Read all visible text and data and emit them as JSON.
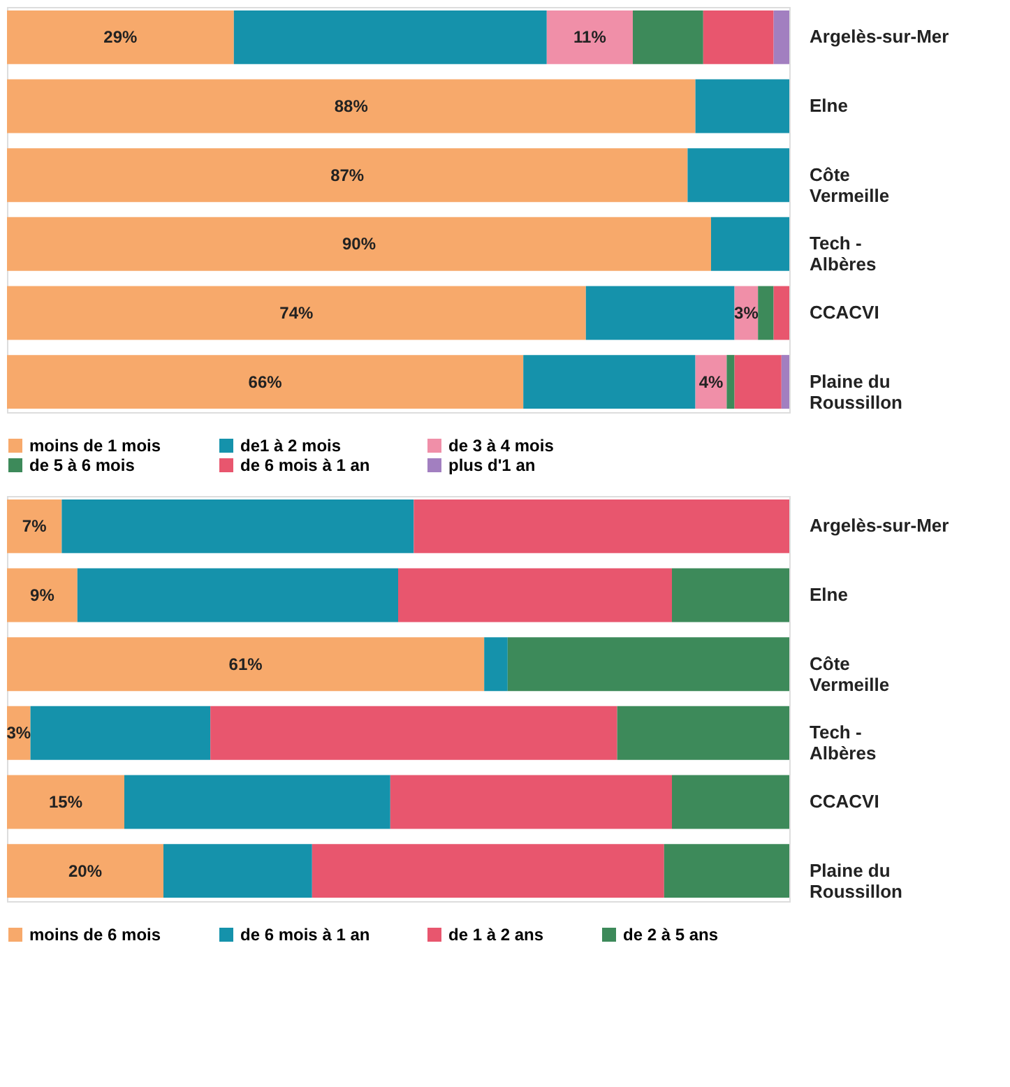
{
  "chart_data": [
    {
      "type": "bar",
      "orientation": "horizontal",
      "stacked": true,
      "legend": "bottom",
      "categories": [
        "Argelès-sur-Mer",
        "Elne",
        "Côte Vermeille",
        "Tech - Albères",
        "CCACVI",
        "Plaine du Roussillon"
      ],
      "series": [
        {
          "name": "moins de 1 mois",
          "color": "#f7a96b",
          "values": [
            29,
            88,
            87,
            90,
            74,
            66
          ],
          "value_labels": [
            "29%",
            "88%",
            "87%",
            "90%",
            "74%",
            "66%"
          ]
        },
        {
          "name": "de1 à 2 mois",
          "color": "#1592ab",
          "values": [
            40,
            12,
            13,
            10,
            19,
            22
          ],
          "value_labels": [
            null,
            null,
            null,
            null,
            null,
            null
          ]
        },
        {
          "name": "de 3 à 4 mois",
          "color": "#f08fa8",
          "values": [
            11,
            0,
            0,
            0,
            3,
            4
          ],
          "value_labels": [
            "11%",
            null,
            null,
            null,
            "3%",
            "4%"
          ]
        },
        {
          "name": "de 5 à 6 mois",
          "color": "#3d8a5a",
          "values": [
            9,
            0,
            0,
            0,
            2,
            1
          ],
          "value_labels": [
            null,
            null,
            null,
            null,
            null,
            null
          ]
        },
        {
          "name": "de 6 mois à 1 an",
          "color": "#e8566e",
          "values": [
            9,
            0,
            0,
            0,
            2,
            6
          ],
          "value_labels": [
            null,
            null,
            null,
            null,
            null,
            null
          ]
        },
        {
          "name": "plus d'1 an",
          "color": "#a27fc0",
          "values": [
            2,
            0,
            0,
            0,
            0,
            1
          ],
          "value_labels": [
            null,
            null,
            null,
            null,
            null,
            null
          ]
        }
      ]
    },
    {
      "type": "bar",
      "orientation": "horizontal",
      "stacked": true,
      "legend": "bottom",
      "categories": [
        "Argelès-sur-Mer",
        "Elne",
        "Côte Vermeille",
        "Tech - Albères",
        "CCACVI",
        "Plaine du Roussillon"
      ],
      "series": [
        {
          "name": "moins de 6 mois",
          "color": "#f7a96b",
          "values": [
            7,
            9,
            61,
            3,
            15,
            20
          ],
          "value_labels": [
            "7%",
            "9%",
            "61%",
            "3%",
            "15%",
            "20%"
          ]
        },
        {
          "name": "de 6 mois à 1 an",
          "color": "#1592ab",
          "values": [
            45,
            41,
            3,
            23,
            34,
            19
          ],
          "value_labels": [
            null,
            null,
            null,
            null,
            null,
            null
          ]
        },
        {
          "name": "de 1 à 2 ans",
          "color": "#e8566e",
          "values": [
            48,
            35,
            0,
            52,
            36,
            45
          ],
          "value_labels": [
            null,
            null,
            null,
            null,
            null,
            null
          ]
        },
        {
          "name": "de 2 à 5 ans",
          "color": "#3d8a5a",
          "values": [
            0,
            15,
            36,
            22,
            15,
            16
          ],
          "value_labels": [
            null,
            null,
            null,
            null,
            null,
            null
          ]
        }
      ]
    }
  ]
}
